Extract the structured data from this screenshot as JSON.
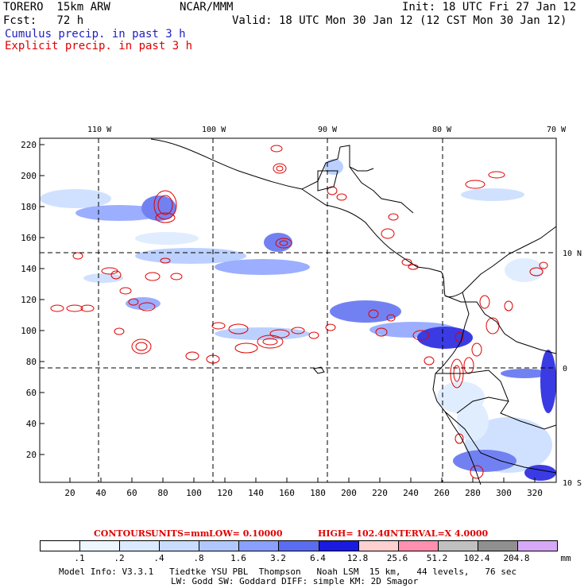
{
  "header": {
    "model": "TORERO  15km ARW",
    "org": "NCAR/MMM",
    "init": "Init: 18 UTC Fri 27 Jan 12",
    "fcst": "Fcst:   72 h",
    "valid": "Valid: 18 UTC Mon 30 Jan 12 (12 CST Mon 30 Jan 12)",
    "cumulus_label": "Cumulus precip. in past 3 h",
    "explicit_label": "Explicit precip. in past 3 h"
  },
  "axes": {
    "lon_labels": [
      "110 W",
      "100 W",
      "90 W",
      "80 W",
      "70 W"
    ],
    "lat_labels": [
      "10 N",
      "0",
      "10 S"
    ],
    "y_ticks": [
      "220",
      "200",
      "180",
      "160",
      "140",
      "120",
      "100",
      "80",
      "60",
      "40",
      "20"
    ],
    "x_ticks": [
      "20",
      "40",
      "60",
      "80",
      "100",
      "120",
      "140",
      "160",
      "180",
      "200",
      "220",
      "240",
      "260",
      "280",
      "300",
      "320"
    ]
  },
  "contours": {
    "label": "CONTOURS:",
    "units": "UNITS=mm",
    "low": "LOW= 0.10000",
    "high": "HIGH=  102.40",
    "interval": "INTERVAL=X  4.0000"
  },
  "colorbar": {
    "labels": [
      ".1",
      ".2",
      ".4",
      ".8",
      "1.6",
      "3.2",
      "6.4",
      "12.8",
      "25.6",
      "51.2",
      "102.4",
      "204.8"
    ],
    "unit": "mm",
    "colors": [
      "#ffffff",
      "#eef6ff",
      "#dbeaff",
      "#c8dcff",
      "#b0c8ff",
      "#8aa0ff",
      "#5a6cf0",
      "#1a1ae0",
      "#ffd0d0",
      "#ff90b0",
      "#c0c0c0",
      "#909090",
      "#d8a8f8"
    ]
  },
  "footer": {
    "line1": "Model Info: V3.3.1   Tiedtke YSU PBL  Thompson   Noah LSM  15 km,   44 levels,   76 sec",
    "line2": "LW: Godd SW: Goddard DIFF: simple KM: 2D Smagor"
  }
}
